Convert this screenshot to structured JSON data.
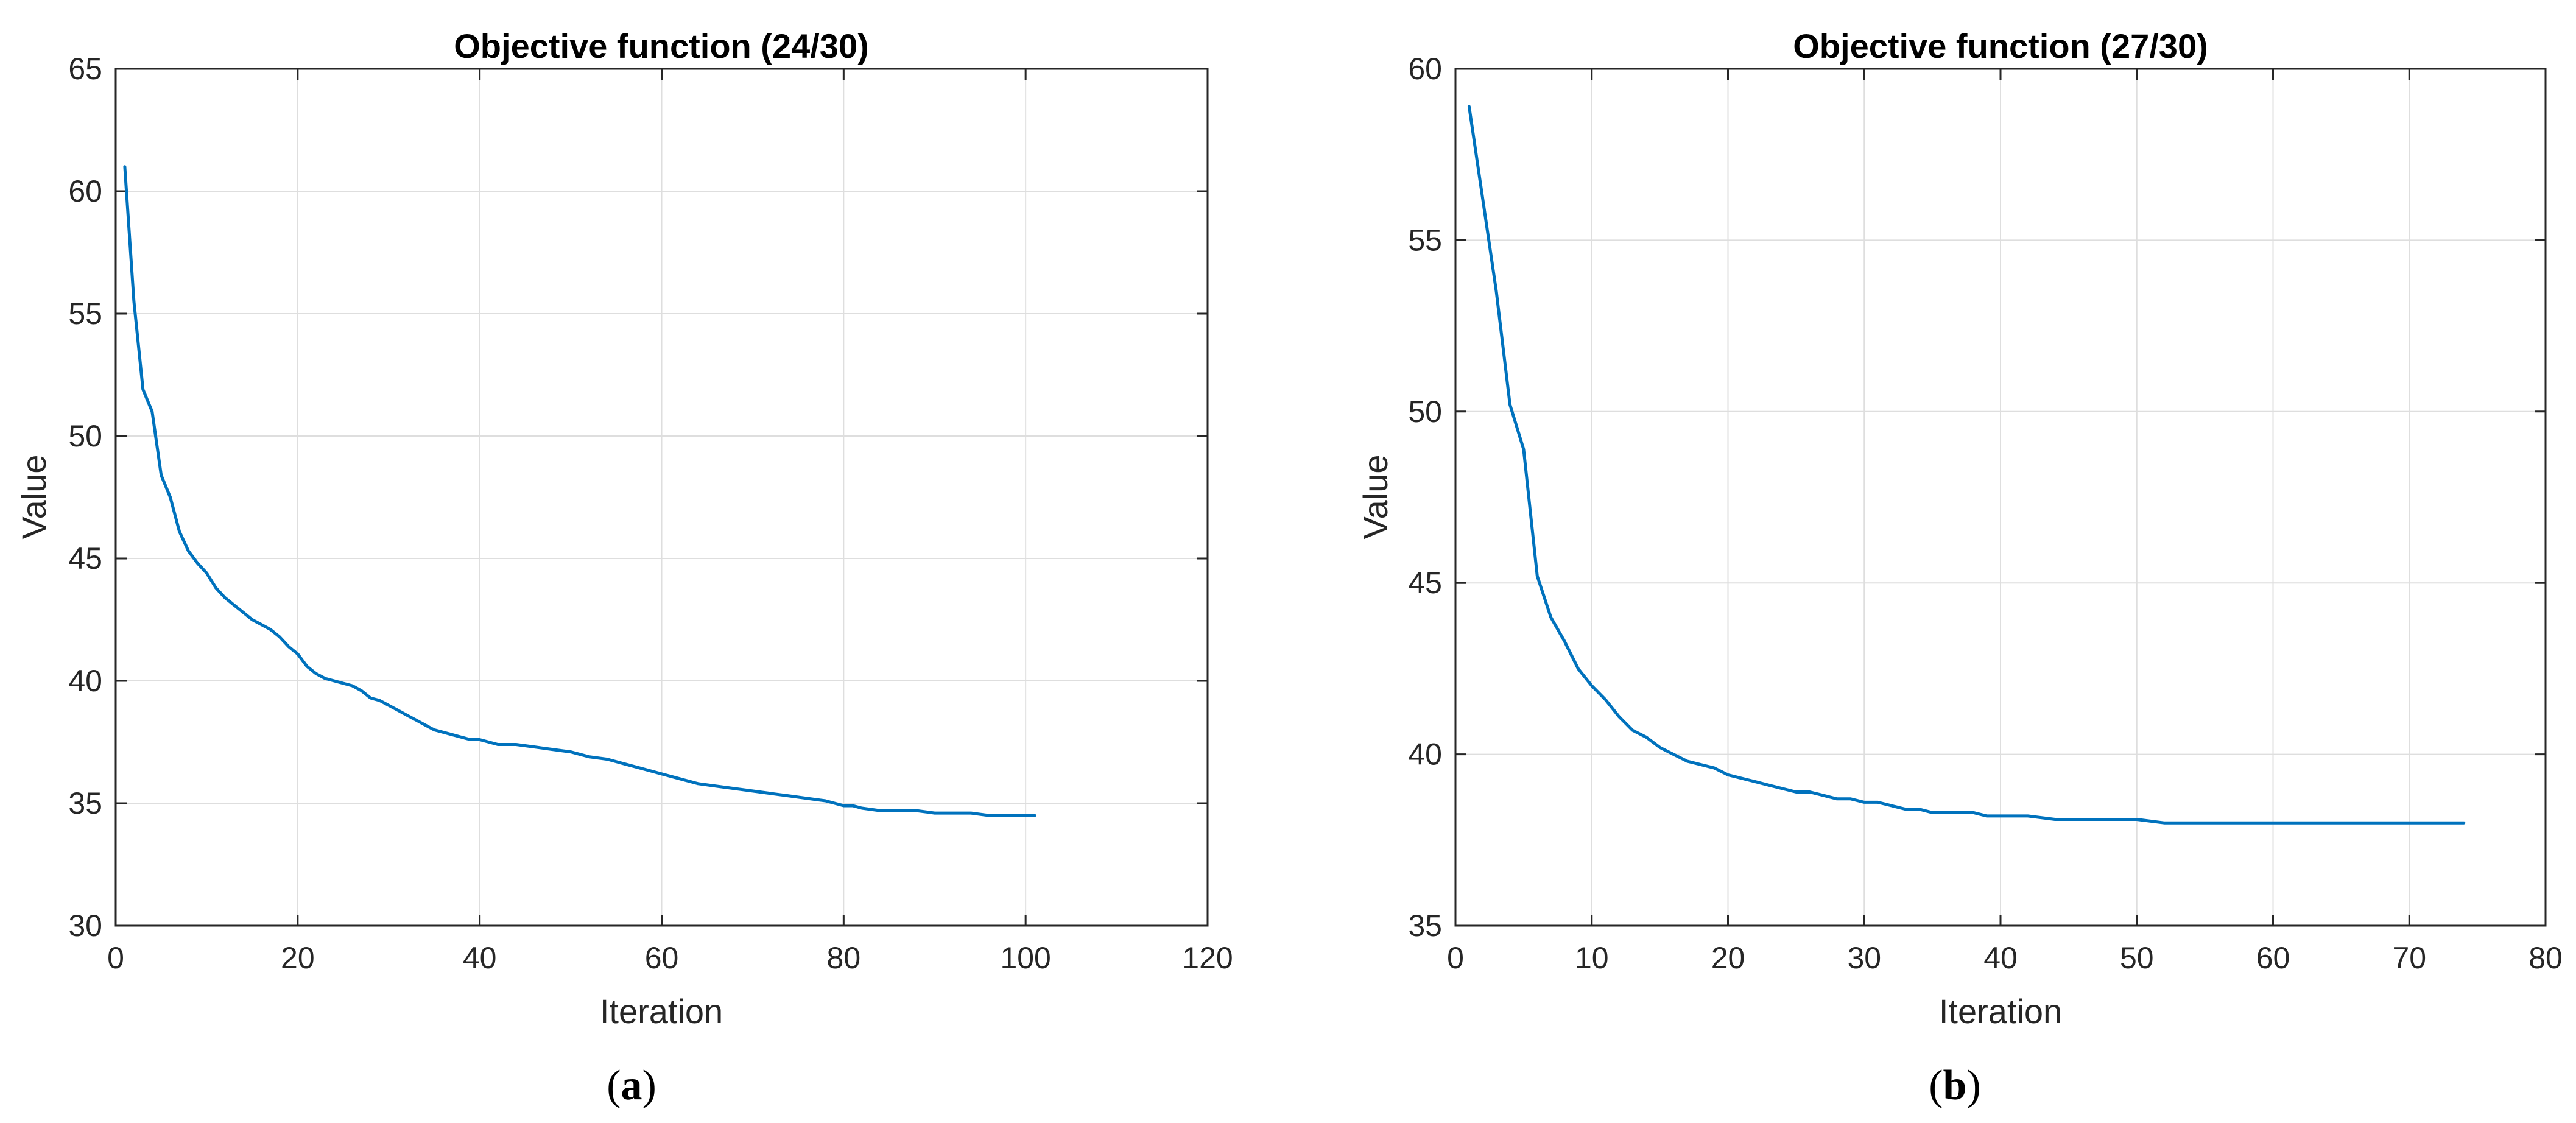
{
  "colors": {
    "series": "#0072bd",
    "grid": "#dedede",
    "axis": "#262626"
  },
  "chart_data": [
    {
      "type": "line",
      "title": "Objective function (24/30)",
      "xlabel": "Iteration",
      "ylabel": "Value",
      "caption_letter": "a",
      "xlim": [
        0,
        120
      ],
      "ylim": [
        30,
        65
      ],
      "xticks": [
        0,
        20,
        40,
        60,
        80,
        100,
        120
      ],
      "yticks": [
        30,
        35,
        40,
        45,
        50,
        55,
        60,
        65
      ],
      "grid": true,
      "series": [
        {
          "x": [
            1,
            2,
            3,
            4,
            5,
            6,
            7,
            8,
            9,
            10,
            11,
            12,
            13,
            14,
            15,
            16,
            17,
            18,
            19,
            20,
            21,
            22,
            23,
            24,
            25,
            26,
            27,
            28,
            29,
            30,
            31,
            32,
            33,
            34,
            35,
            36,
            37,
            38,
            39,
            40,
            42,
            44,
            46,
            48,
            50,
            52,
            54,
            56,
            58,
            60,
            62,
            64,
            66,
            68,
            70,
            72,
            74,
            76,
            78,
            80,
            81,
            82,
            84,
            86,
            88,
            90,
            92,
            94,
            96,
            98,
            100,
            101
          ],
          "y": [
            61.0,
            55.5,
            51.9,
            51.0,
            48.4,
            47.5,
            46.1,
            45.3,
            44.8,
            44.4,
            43.8,
            43.4,
            43.1,
            42.8,
            42.5,
            42.3,
            42.1,
            41.8,
            41.4,
            41.1,
            40.6,
            40.3,
            40.1,
            40.0,
            39.9,
            39.8,
            39.6,
            39.3,
            39.2,
            39.0,
            38.8,
            38.6,
            38.4,
            38.2,
            38.0,
            37.9,
            37.8,
            37.7,
            37.6,
            37.6,
            37.4,
            37.4,
            37.3,
            37.2,
            37.1,
            36.9,
            36.8,
            36.6,
            36.4,
            36.2,
            36.0,
            35.8,
            35.7,
            35.6,
            35.5,
            35.4,
            35.3,
            35.2,
            35.1,
            34.9,
            34.9,
            34.8,
            34.7,
            34.7,
            34.7,
            34.6,
            34.6,
            34.6,
            34.5,
            34.5,
            34.5,
            34.5
          ]
        }
      ]
    },
    {
      "type": "line",
      "title": "Objective function (27/30)",
      "xlabel": "Iteration",
      "ylabel": "Value",
      "caption_letter": "b",
      "xlim": [
        0,
        80
      ],
      "ylim": [
        35,
        60
      ],
      "xticks": [
        0,
        10,
        20,
        30,
        40,
        50,
        60,
        70,
        80
      ],
      "yticks": [
        35,
        40,
        45,
        50,
        55,
        60
      ],
      "grid": true,
      "series": [
        {
          "x": [
            1,
            2,
            3,
            4,
            5,
            6,
            7,
            8,
            9,
            10,
            11,
            12,
            13,
            14,
            15,
            16,
            17,
            18,
            19,
            20,
            21,
            22,
            23,
            24,
            25,
            26,
            27,
            28,
            29,
            30,
            31,
            32,
            33,
            34,
            35,
            36,
            37,
            38,
            39,
            40,
            42,
            44,
            46,
            48,
            50,
            52,
            54,
            56,
            58,
            60,
            62,
            64,
            66,
            68,
            70,
            72,
            74
          ],
          "y": [
            58.9,
            56.2,
            53.5,
            50.2,
            48.9,
            45.2,
            44.0,
            43.3,
            42.5,
            42.0,
            41.6,
            41.1,
            40.7,
            40.5,
            40.2,
            40.0,
            39.8,
            39.7,
            39.6,
            39.4,
            39.3,
            39.2,
            39.1,
            39.0,
            38.9,
            38.9,
            38.8,
            38.7,
            38.7,
            38.6,
            38.6,
            38.5,
            38.4,
            38.4,
            38.3,
            38.3,
            38.3,
            38.3,
            38.2,
            38.2,
            38.2,
            38.1,
            38.1,
            38.1,
            38.1,
            38.0,
            38.0,
            38.0,
            38.0,
            38.0,
            38.0,
            38.0,
            38.0,
            38.0,
            38.0,
            38.0,
            38.0
          ]
        }
      ]
    }
  ]
}
